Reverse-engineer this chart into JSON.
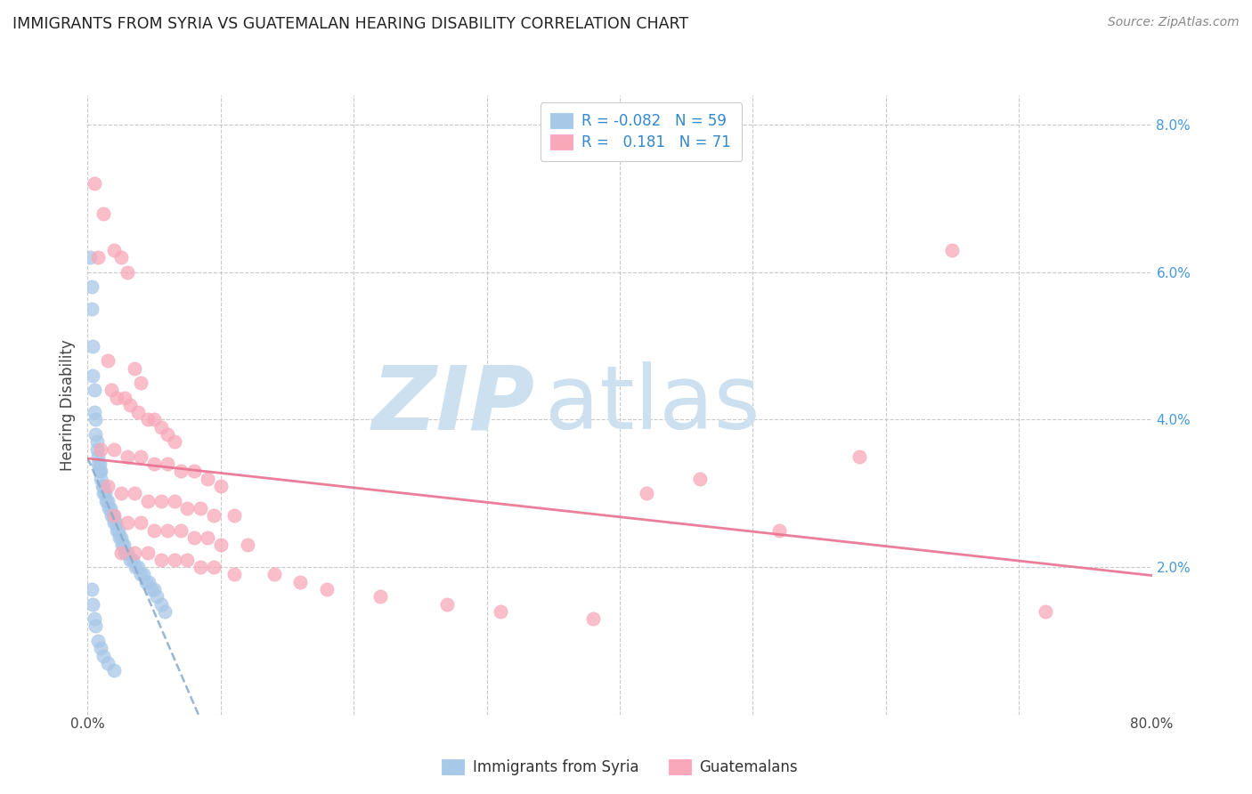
{
  "title": "IMMIGRANTS FROM SYRIA VS GUATEMALAN HEARING DISABILITY CORRELATION CHART",
  "source": "Source: ZipAtlas.com",
  "ylabel": "Hearing Disability",
  "ylim": [
    0.0,
    0.084
  ],
  "xlim": [
    0.0,
    0.8
  ],
  "ytick_vals": [
    0.0,
    0.02,
    0.04,
    0.06,
    0.08
  ],
  "ytick_labels_right": [
    "",
    "2.0%",
    "4.0%",
    "6.0%",
    "8.0%"
  ],
  "xtick_vals": [
    0.0,
    0.1,
    0.2,
    0.3,
    0.4,
    0.5,
    0.6,
    0.7,
    0.8
  ],
  "r_syria": -0.082,
  "n_syria": 59,
  "r_guatemalan": 0.181,
  "n_guatemalan": 71,
  "legend_label_syria": "Immigrants from Syria",
  "legend_label_guatemalan": "Guatemalans",
  "color_syria": "#a8c8e8",
  "color_guatemalan": "#f8a8b8",
  "color_syria_line": "#88aacc",
  "color_guatemalan_line": "#e87090",
  "watermark_zip": "ZIP",
  "watermark_atlas": "atlas",
  "watermark_color_zip": "#c8dff0",
  "watermark_color_atlas": "#c8dff0",
  "background_color": "#ffffff",
  "syria_scatter_x": [
    0.002,
    0.003,
    0.003,
    0.004,
    0.004,
    0.005,
    0.005,
    0.006,
    0.006,
    0.007,
    0.007,
    0.008,
    0.008,
    0.009,
    0.009,
    0.01,
    0.01,
    0.011,
    0.012,
    0.012,
    0.013,
    0.014,
    0.015,
    0.016,
    0.017,
    0.018,
    0.019,
    0.02,
    0.021,
    0.022,
    0.023,
    0.024,
    0.025,
    0.026,
    0.027,
    0.028,
    0.03,
    0.032,
    0.034,
    0.036,
    0.038,
    0.04,
    0.042,
    0.044,
    0.046,
    0.048,
    0.05,
    0.052,
    0.055,
    0.058,
    0.003,
    0.004,
    0.005,
    0.006,
    0.008,
    0.01,
    0.012,
    0.015,
    0.02
  ],
  "syria_scatter_y": [
    0.062,
    0.058,
    0.055,
    0.05,
    0.046,
    0.044,
    0.041,
    0.04,
    0.038,
    0.037,
    0.036,
    0.035,
    0.034,
    0.034,
    0.033,
    0.033,
    0.032,
    0.031,
    0.031,
    0.03,
    0.03,
    0.029,
    0.029,
    0.028,
    0.028,
    0.027,
    0.027,
    0.026,
    0.026,
    0.025,
    0.025,
    0.024,
    0.024,
    0.023,
    0.023,
    0.022,
    0.022,
    0.021,
    0.021,
    0.02,
    0.02,
    0.019,
    0.019,
    0.018,
    0.018,
    0.017,
    0.017,
    0.016,
    0.015,
    0.014,
    0.017,
    0.015,
    0.013,
    0.012,
    0.01,
    0.009,
    0.008,
    0.007,
    0.006
  ],
  "guatemalan_scatter_x": [
    0.005,
    0.012,
    0.02,
    0.008,
    0.025,
    0.03,
    0.015,
    0.035,
    0.04,
    0.018,
    0.022,
    0.028,
    0.032,
    0.038,
    0.045,
    0.05,
    0.055,
    0.06,
    0.065,
    0.01,
    0.02,
    0.03,
    0.04,
    0.05,
    0.06,
    0.07,
    0.08,
    0.09,
    0.1,
    0.015,
    0.025,
    0.035,
    0.045,
    0.055,
    0.065,
    0.075,
    0.085,
    0.095,
    0.11,
    0.02,
    0.03,
    0.04,
    0.05,
    0.06,
    0.07,
    0.08,
    0.09,
    0.1,
    0.12,
    0.025,
    0.035,
    0.045,
    0.055,
    0.065,
    0.075,
    0.085,
    0.095,
    0.11,
    0.14,
    0.16,
    0.18,
    0.22,
    0.27,
    0.31,
    0.38,
    0.42,
    0.46,
    0.52,
    0.58,
    0.65,
    0.72
  ],
  "guatemalan_scatter_y": [
    0.072,
    0.068,
    0.063,
    0.062,
    0.062,
    0.06,
    0.048,
    0.047,
    0.045,
    0.044,
    0.043,
    0.043,
    0.042,
    0.041,
    0.04,
    0.04,
    0.039,
    0.038,
    0.037,
    0.036,
    0.036,
    0.035,
    0.035,
    0.034,
    0.034,
    0.033,
    0.033,
    0.032,
    0.031,
    0.031,
    0.03,
    0.03,
    0.029,
    0.029,
    0.029,
    0.028,
    0.028,
    0.027,
    0.027,
    0.027,
    0.026,
    0.026,
    0.025,
    0.025,
    0.025,
    0.024,
    0.024,
    0.023,
    0.023,
    0.022,
    0.022,
    0.022,
    0.021,
    0.021,
    0.021,
    0.02,
    0.02,
    0.019,
    0.019,
    0.018,
    0.017,
    0.016,
    0.015,
    0.014,
    0.013,
    0.03,
    0.032,
    0.025,
    0.035,
    0.063,
    0.014
  ]
}
